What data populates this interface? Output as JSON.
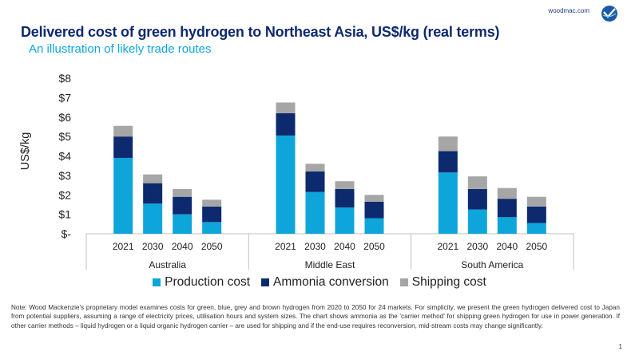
{
  "header": {
    "brand": "woodmac.com",
    "title": "Delivered cost of green hydrogen to Northeast Asia, US$/kg (real terms)",
    "subtitle": "An illustration of likely trade routes"
  },
  "colors": {
    "production": "#0ea5db",
    "ammonia": "#0d2a6e",
    "shipping": "#a6a6a6",
    "brand": "#0d2a6e",
    "accent": "#0ea5db"
  },
  "chart_data": {
    "type": "bar",
    "stacked": true,
    "title": "Delivered cost of green hydrogen to Northeast Asia, US$/kg (real terms)",
    "subtitle": "An illustration of likely trade routes",
    "ylabel": "US$/kg",
    "ylim": [
      0,
      8
    ],
    "yticks": [
      0,
      1,
      2,
      3,
      4,
      5,
      6,
      7,
      8
    ],
    "ytick_labels": [
      "$-",
      "$1",
      "$2",
      "$3",
      "$4",
      "$5",
      "$6",
      "$7",
      "$8"
    ],
    "grid": false,
    "legend_position": "bottom",
    "groups": [
      {
        "name": "Australia",
        "categories": [
          "2021",
          "2030",
          "2040",
          "2050"
        ]
      },
      {
        "name": "Middle East",
        "categories": [
          "2021",
          "2030",
          "2040",
          "2050"
        ]
      },
      {
        "name": "South America",
        "categories": [
          "2021",
          "2030",
          "2040",
          "2050"
        ]
      }
    ],
    "series": [
      {
        "name": "Production cost",
        "color": "#0ea5db",
        "values": [
          [
            3.9,
            1.55,
            1.0,
            0.6
          ],
          [
            5.05,
            2.15,
            1.35,
            0.8
          ],
          [
            3.15,
            1.25,
            0.85,
            0.55
          ]
        ]
      },
      {
        "name": "Ammonia conversion",
        "color": "#0d2a6e",
        "values": [
          [
            1.1,
            1.05,
            0.9,
            0.8
          ],
          [
            1.15,
            1.05,
            0.95,
            0.85
          ],
          [
            1.1,
            1.05,
            0.95,
            0.85
          ]
        ]
      },
      {
        "name": "Shipping cost",
        "color": "#a6a6a6",
        "values": [
          [
            0.55,
            0.45,
            0.4,
            0.35
          ],
          [
            0.55,
            0.4,
            0.4,
            0.35
          ],
          [
            0.75,
            0.65,
            0.55,
            0.5
          ]
        ]
      }
    ]
  },
  "footer": {
    "note": "Note: Wood Mackenzie's proprietary model examines costs for green, blue, grey and brown hydrogen from 2020 to 2050 for 24 markets. For simplicity, we present the green hydrogen delivered cost to Japan from potential suppliers, assuming a range of electricity prices, utilisation hours and system sizes. The chart shows ammonia as the 'carrier method' for shipping green hydrogen for use in power generation. If other carrier methods – liquid hydrogen or a liquid organic hydrogen carrier – are used for shipping and if the end-use requires reconversion, mid-stream costs may change significantly.",
    "page_number": "1"
  }
}
